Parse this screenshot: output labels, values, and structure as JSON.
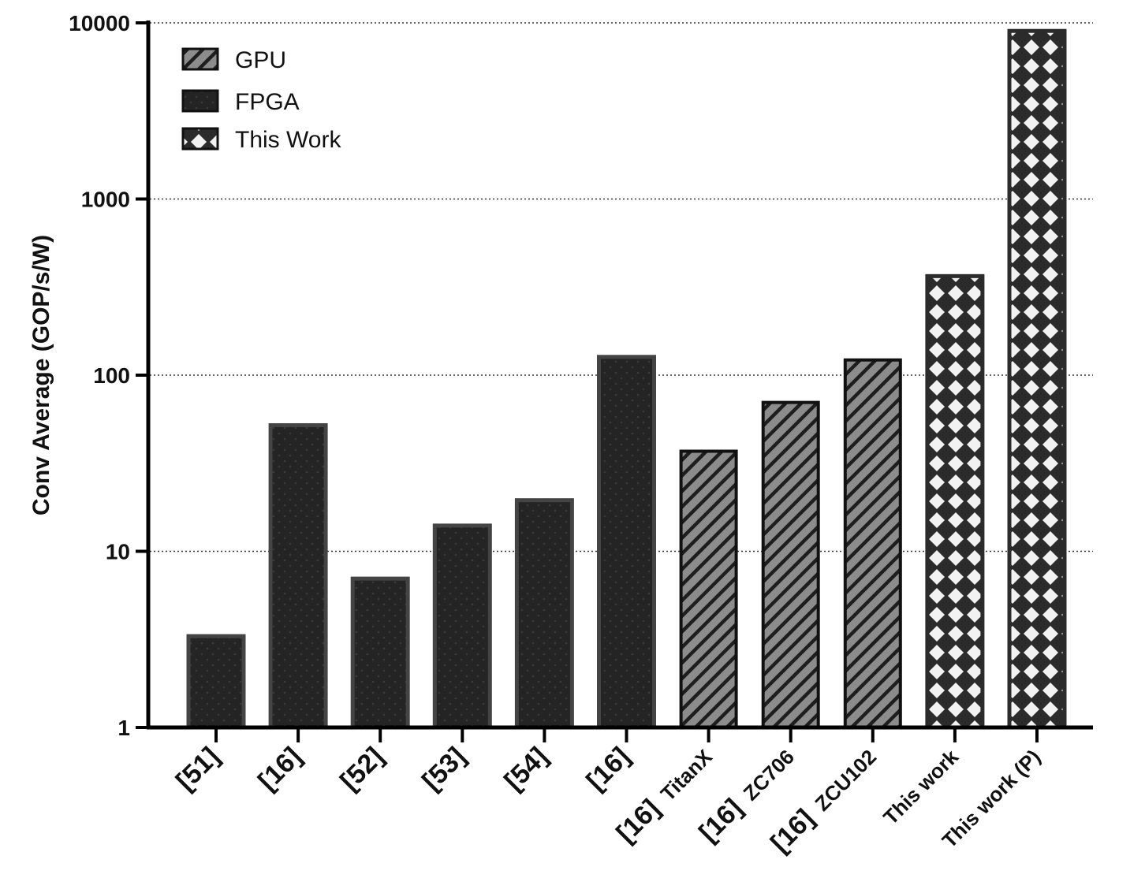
{
  "chart_data": {
    "type": "bar",
    "title": "",
    "xlabel": "",
    "ylabel": "Conv Average (GOP/s/W)",
    "yscale": "log",
    "ylim": [
      1,
      10000
    ],
    "yticks": [
      1,
      10,
      100,
      1000,
      10000
    ],
    "ytick_labels": [
      "1",
      "10",
      "100",
      "1000",
      "10000"
    ],
    "grid": "horizontal dotted at major ticks",
    "legend_position": "top-left",
    "legend": [
      {
        "name": "GPU",
        "pattern": "diagonal-hatch"
      },
      {
        "name": "FPGA",
        "pattern": "dots"
      },
      {
        "name": "This Work",
        "pattern": "diamond-lattice"
      }
    ],
    "categories": [
      {
        "ref": "[51]",
        "device": "",
        "group": "FPGA"
      },
      {
        "ref": "[16]",
        "device": "",
        "group": "FPGA"
      },
      {
        "ref": "[52]",
        "device": "",
        "group": "FPGA"
      },
      {
        "ref": "[53]",
        "device": "",
        "group": "FPGA"
      },
      {
        "ref": "[54]",
        "device": "",
        "group": "FPGA"
      },
      {
        "ref": "[16]",
        "device": "",
        "group": "FPGA"
      },
      {
        "ref": "[16]",
        "device": "TitanX",
        "group": "GPU"
      },
      {
        "ref": "[16]",
        "device": "ZC706",
        "group": "GPU"
      },
      {
        "ref": "[16]",
        "device": "ZCU102",
        "group": "GPU"
      },
      {
        "ref": "",
        "device": "This work",
        "group": "This Work"
      },
      {
        "ref": "",
        "device": "This work (P)",
        "group": "This Work"
      }
    ],
    "values": [
      3.3,
      52,
      7,
      14,
      19.5,
      127,
      37,
      70,
      122,
      365,
      9000
    ],
    "colors": {
      "fpga_fill": "#242424",
      "fpga_border": "#444444",
      "gpu_fill": "#8c8c8c",
      "gpu_border": "#111111",
      "thiswork_fill": "#f2f2f2",
      "thiswork_border": "#2b2b2b"
    }
  }
}
